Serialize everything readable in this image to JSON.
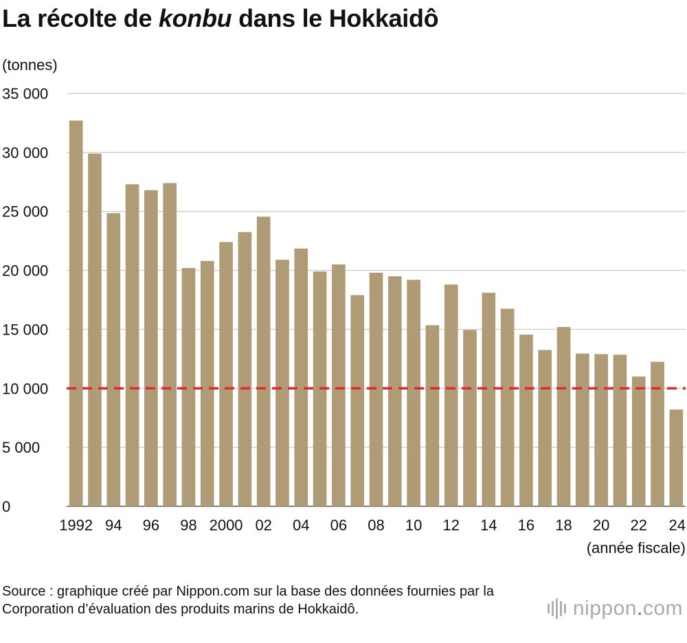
{
  "title": {
    "before": "La récolte de ",
    "emphasis": "konbu",
    "after": " dans le Hokkaidô"
  },
  "source": "Source : graphique créé par Nippon.com sur la base des données fournies par la Corporation d’évaluation des produits marins de Hokkaidô.",
  "logo": {
    "name": "nippon",
    "dot": ".",
    "suffix": "com"
  },
  "chart_data": {
    "type": "bar",
    "ylabel": "(tonnes)",
    "xlabel": "(année fiscale)",
    "ylim": [
      0,
      35000
    ],
    "yticks": [
      0,
      5000,
      10000,
      15000,
      20000,
      25000,
      30000,
      35000
    ],
    "ytick_labels": [
      "0",
      "5 000",
      "10 000",
      "15 000",
      "20 000",
      "25 000",
      "30 000",
      "35 000"
    ],
    "grid": true,
    "reference_line": {
      "value": 10000,
      "style": "dashed",
      "color": "#e8262b"
    },
    "bar_color": "#b09b77",
    "categories": [
      1992,
      1993,
      1994,
      1995,
      1996,
      1997,
      1998,
      1999,
      2000,
      2001,
      2002,
      2003,
      2004,
      2005,
      2006,
      2007,
      2008,
      2009,
      2010,
      2011,
      2012,
      2013,
      2014,
      2015,
      2016,
      2017,
      2018,
      2019,
      2020,
      2021,
      2022,
      2023,
      2024
    ],
    "xtick_labels": [
      "1992",
      "",
      "94",
      "",
      "96",
      "",
      "98",
      "",
      "2000",
      "",
      "02",
      "",
      "04",
      "",
      "06",
      "",
      "08",
      "",
      "10",
      "",
      "12",
      "",
      "14",
      "",
      "16",
      "",
      "18",
      "",
      "20",
      "",
      "22",
      "",
      "24"
    ],
    "values": [
      32700,
      29900,
      24850,
      27300,
      26800,
      27400,
      20200,
      20800,
      22400,
      23250,
      24550,
      20900,
      21850,
      19900,
      20500,
      17900,
      19800,
      19500,
      19200,
      15350,
      18800,
      14950,
      18100,
      16750,
      14550,
      13250,
      15200,
      12950,
      12900,
      12850,
      11000,
      12250,
      8200
    ]
  }
}
